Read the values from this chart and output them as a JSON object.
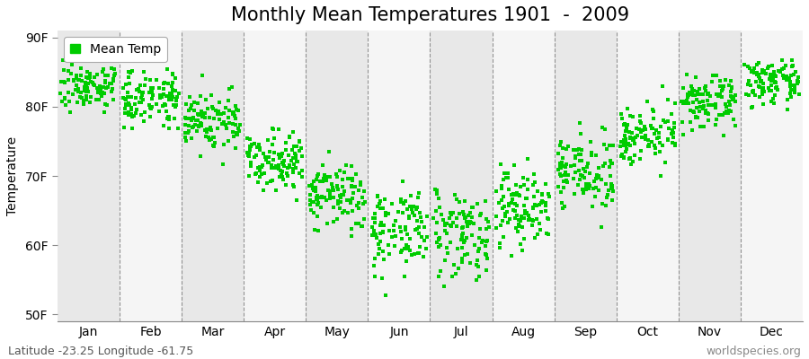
{
  "title": "Monthly Mean Temperatures 1901  -  2009",
  "ylabel": "Temperature",
  "xlabel_months": [
    "Jan",
    "Feb",
    "Mar",
    "Apr",
    "May",
    "Jun",
    "Jul",
    "Aug",
    "Sep",
    "Oct",
    "Nov",
    "Dec"
  ],
  "ytick_labels": [
    "50F",
    "60F",
    "70F",
    "80F",
    "90F"
  ],
  "ytick_values": [
    50,
    60,
    70,
    80,
    90
  ],
  "ylim": [
    49,
    91
  ],
  "legend_label": "Mean Temp",
  "dot_color": "#00CC00",
  "dot_size": 8,
  "band_color_odd": "#e8e8e8",
  "band_color_even": "#f5f5f5",
  "footer_left": "Latitude -23.25 Longitude -61.75",
  "footer_right": "worldspecies.org",
  "title_fontsize": 15,
  "axis_fontsize": 10,
  "footer_fontsize": 9,
  "monthly_means": [
    83.0,
    81.5,
    78.0,
    72.5,
    67.0,
    62.5,
    62.0,
    65.5,
    70.5,
    76.0,
    80.5,
    83.5
  ],
  "monthly_stds": [
    1.6,
    2.0,
    2.2,
    2.0,
    2.5,
    3.0,
    3.2,
    3.0,
    2.5,
    2.0,
    1.8,
    1.5
  ],
  "num_years": 109,
  "random_seed": 7
}
